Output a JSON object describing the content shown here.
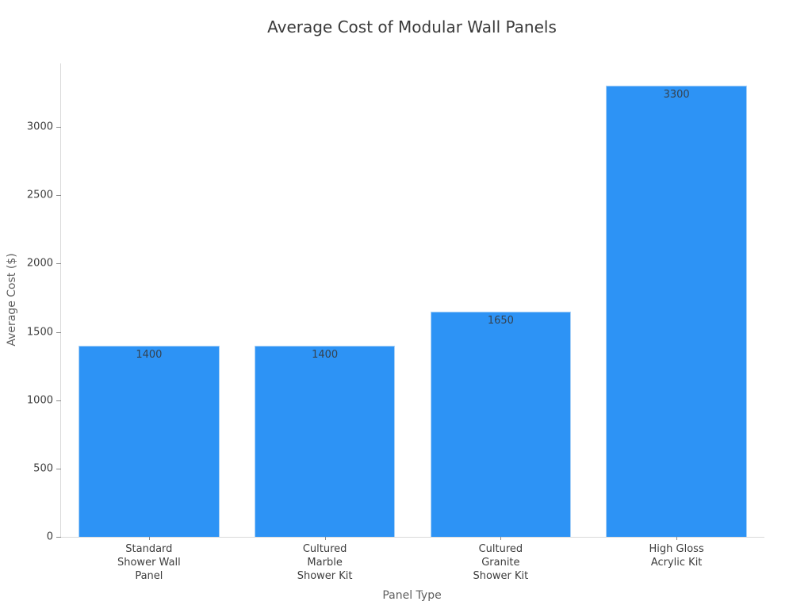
{
  "chart_data": {
    "type": "bar",
    "title": "Average Cost of Modular Wall Panels",
    "xlabel": "Panel Type",
    "ylabel": "Average Cost ($)",
    "categories": [
      "Standard\nShower Wall\nPanel",
      "Cultured\nMarble\nShower Kit",
      "Cultured\nGranite\nShower Kit",
      "High Gloss\nAcrylic Kit"
    ],
    "values": [
      1400,
      1400,
      1650,
      3300
    ],
    "bar_value_labels": [
      "1400",
      "1400",
      "1650",
      "3300"
    ],
    "yticks": [
      0,
      500,
      1000,
      1500,
      2000,
      2500,
      3000
    ],
    "ylim": [
      0,
      3465
    ],
    "bar_width_fraction": 0.8,
    "grid": false,
    "legend": null,
    "colors": {
      "bar_fill": "#2D93F5",
      "bar_edge": "#a9d1f7",
      "background": "#ffffff",
      "spine": "#d9d9d9",
      "tick_label": "#3d3d3d",
      "axis_label": "#5f5f5f",
      "title": "#3a3a3a",
      "value_label": "#344250"
    }
  }
}
